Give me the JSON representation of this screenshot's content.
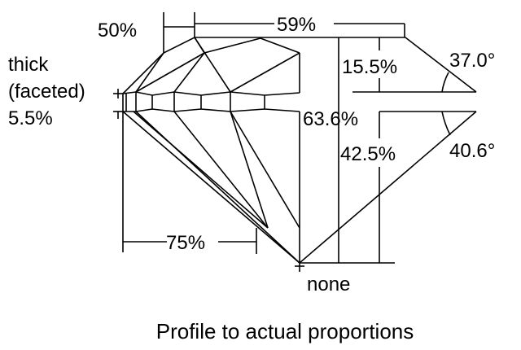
{
  "labels": {
    "crown_height_upper": "50%",
    "table": "59%",
    "crown_height": "15.5%",
    "crown_angle": "37.0°",
    "girdle_line1": "thick",
    "girdle_line2": "(faceted)",
    "girdle_pct": "5.5%",
    "total_depth": "63.6%",
    "pavilion_depth": "42.5%",
    "pavilion_angle": "40.6°",
    "lower_half": "75%",
    "culet": "none"
  },
  "caption": "Profile to actual proportions",
  "colors": {
    "line": "#000000",
    "background": "#ffffff"
  }
}
